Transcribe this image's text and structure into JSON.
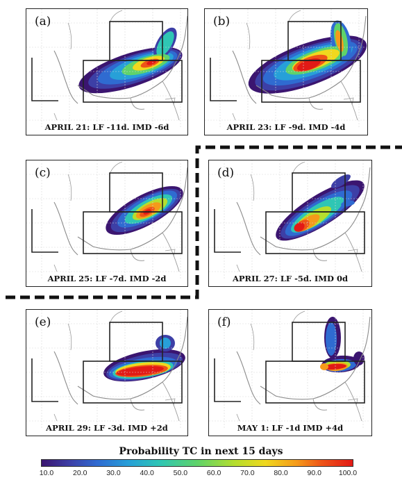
{
  "panels": [
    {
      "id": "a",
      "label": "(a)",
      "caption": "APRIL 21: LF -11d. IMD -6d"
    },
    {
      "id": "b",
      "label": "(b)",
      "caption": "APRIL 23: LF -9d. IMD -4d"
    },
    {
      "id": "c",
      "label": "(c)",
      "caption": "APRIL 25: LF -7d. IMD -2d"
    },
    {
      "id": "d",
      "label": "(d)",
      "caption": "APRIL 27: LF -5d. IMD  0d"
    },
    {
      "id": "e",
      "label": "(e)",
      "caption": "APRIL 29: LF -3d. IMD +2d"
    },
    {
      "id": "f",
      "label": "(f)",
      "caption": "MAY 1: LF -1d  IMD +4d"
    }
  ],
  "colorbar": {
    "title": "Probability TC in next 15 days",
    "ticks": [
      "10.0",
      "20.0",
      "30.0",
      "40.0",
      "50.0",
      "60.0",
      "70.0",
      "80.0",
      "90.0",
      "100.0"
    ]
  },
  "chart_data": {
    "type": "heatmap",
    "title": "",
    "colorbar_label": "Probability TC in next 15 days",
    "colorbar_range": [
      10,
      100
    ],
    "colors": [
      "#3b1570",
      "#3d3fa6",
      "#2f6bd1",
      "#27a0d8",
      "#2fc6b4",
      "#5fd36a",
      "#b5de2e",
      "#f0d81e",
      "#f59a1a",
      "#ee5418",
      "#e21a16"
    ],
    "maps": [
      {
        "panel": "a",
        "date": "APRIL 21",
        "lead_lf_days": -11,
        "lead_imd_days": -6
      },
      {
        "panel": "b",
        "date": "APRIL 23",
        "lead_lf_days": -9,
        "lead_imd_days": -4
      },
      {
        "panel": "c",
        "date": "APRIL 25",
        "lead_lf_days": -7,
        "lead_imd_days": -2
      },
      {
        "panel": "d",
        "date": "APRIL 27",
        "lead_lf_days": -5,
        "lead_imd_days": 0
      },
      {
        "panel": "e",
        "date": "APRIL 29",
        "lead_lf_days": -3,
        "lead_imd_days": 2
      },
      {
        "panel": "f",
        "date": "MAY 1",
        "lead_lf_days": -1,
        "lead_imd_days": 4
      }
    ]
  }
}
